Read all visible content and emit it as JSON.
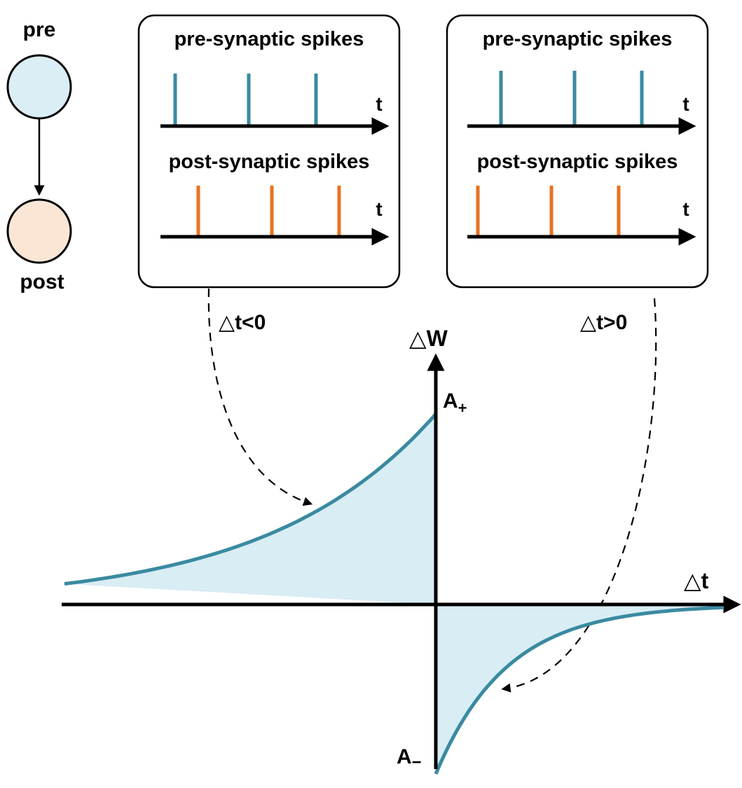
{
  "colors": {
    "pre_neuron_fill": "#dbeef5",
    "post_neuron_fill": "#fbe6d6",
    "pre_spike": "#3a8aa0",
    "post_spike": "#e8731f",
    "curve_stroke": "#3a8aa0",
    "curve_fill": "#d8edf4",
    "axis": "#000000"
  },
  "neurons": {
    "pre_label": "pre",
    "post_label": "post"
  },
  "panels": [
    {
      "pre_title": "pre-synaptic spikes",
      "post_title": "post-synaptic spikes",
      "time_label": "t",
      "pre_spike_times": [
        0.07,
        0.42,
        0.74
      ],
      "post_spike_times": [
        0.18,
        0.53,
        0.85
      ],
      "annotation": "△t<0"
    },
    {
      "pre_title": "pre-synaptic spikes",
      "post_title": "post-synaptic spikes",
      "time_label": "t",
      "pre_spike_times": [
        0.16,
        0.51,
        0.83
      ],
      "post_spike_times": [
        0.05,
        0.4,
        0.72
      ],
      "annotation": "△t>0"
    }
  ],
  "stdp_plot": {
    "y_axis_label": "△W",
    "x_axis_label": "△t",
    "a_plus_label": "A",
    "a_plus_sub": "+",
    "a_minus_label": "A",
    "a_minus_sub": "−",
    "a_plus": 1.0,
    "a_minus": 1.0,
    "tau": 0.45
  }
}
